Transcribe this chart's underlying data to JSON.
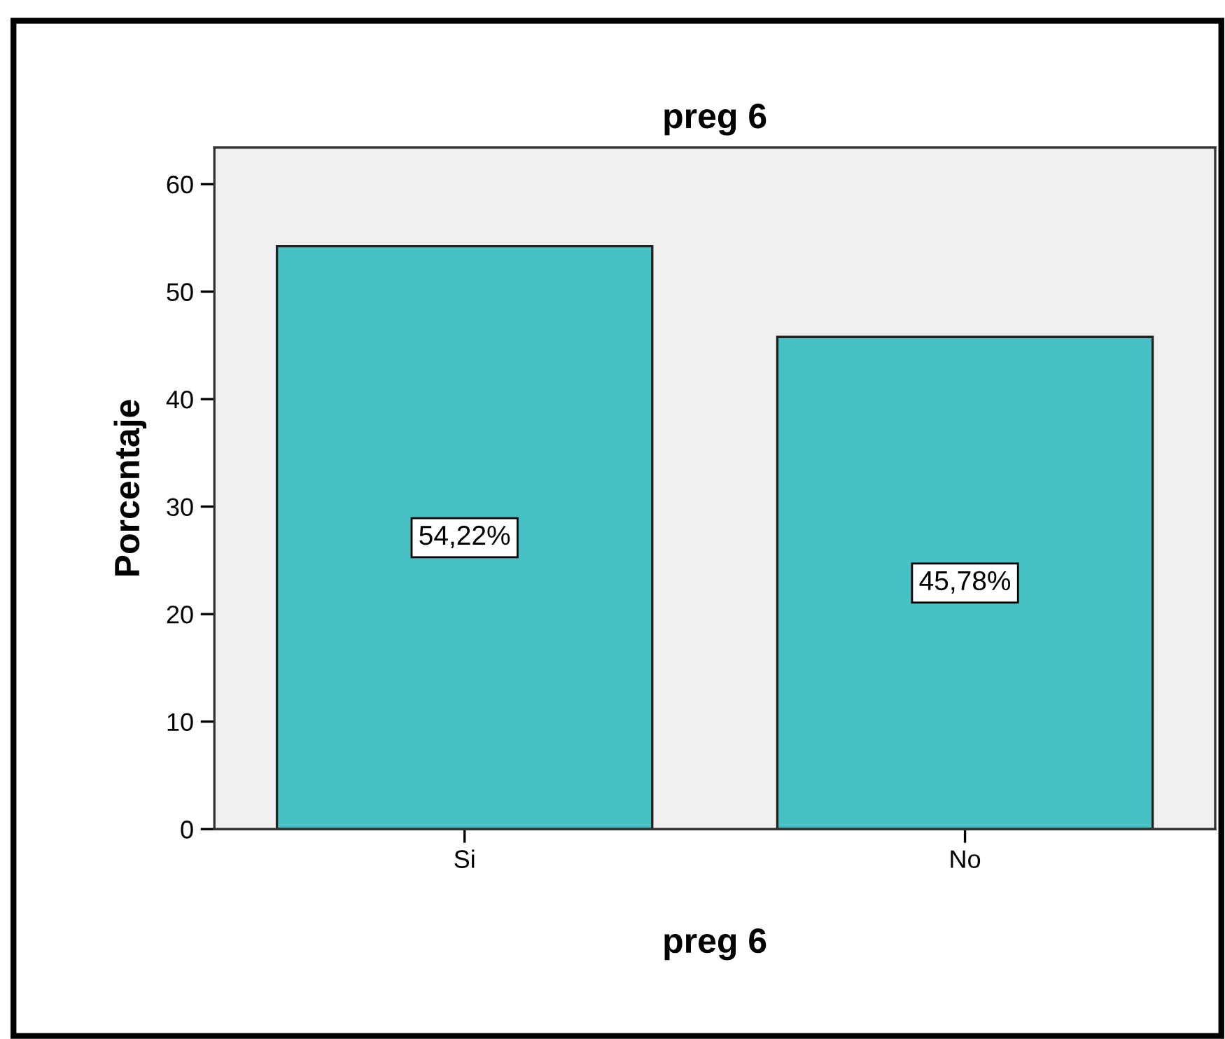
{
  "chart_data": {
    "type": "bar",
    "title": "preg 6",
    "xlabel": "preg 6",
    "ylabel": "Porcentaje",
    "categories": [
      "Si",
      "No"
    ],
    "values": [
      54.22,
      45.78
    ],
    "color": "#48c1c4",
    "value_labels": [
      "54,22%",
      "45,78%"
    ],
    "ylim": [
      0,
      63.4
    ],
    "yticks": [
      0,
      10,
      20,
      30,
      40,
      50,
      60
    ],
    "grid": false,
    "legend": false
  }
}
